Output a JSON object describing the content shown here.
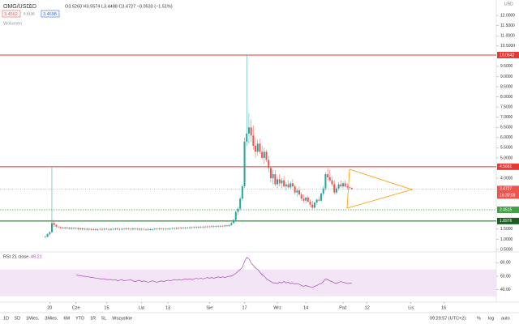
{
  "chart_data": {
    "type": "candlestick",
    "symbol": "OMG/USD",
    "interval": "1D",
    "legend_values": "O3.5260 H3.5574 L3.4488 C3.4727 −0.0533 (−1.51%)",
    "buttons": [
      "3.4562",
      "0.0136",
      "3.4698"
    ],
    "volume_label": "Wolumen",
    "currency": "USD",
    "up_color": "#26a69a",
    "down_color": "#ef5350",
    "xlim": [
      -20.7,
      206
    ],
    "xticks": [
      {
        "value": 2,
        "label": "20"
      },
      {
        "value": 14,
        "label": "Cze"
      },
      {
        "value": 28,
        "label": "15"
      },
      {
        "value": 44,
        "label": "Lip"
      },
      {
        "value": 56,
        "label": "13"
      },
      {
        "value": 75,
        "label": "Sie"
      },
      {
        "value": 91,
        "label": "17"
      },
      {
        "value": 106,
        "label": "Wrz"
      },
      {
        "value": 119,
        "label": "14"
      },
      {
        "value": 136,
        "label": "Paź"
      },
      {
        "value": 147,
        "label": "12"
      },
      {
        "value": 167,
        "label": "Lis"
      },
      {
        "value": 182,
        "label": "16"
      }
    ],
    "ylim": [
      0.42,
      12.76
    ],
    "yticks": [
      {
        "value": 12,
        "label": "12.0000"
      },
      {
        "value": 11.5,
        "label": "11.5000"
      },
      {
        "value": 11,
        "label": "11.0000"
      },
      {
        "value": 10.5,
        "label": "10.5000"
      },
      {
        "value": 9.5,
        "label": "9.5000"
      },
      {
        "value": 9,
        "label": "9.0000"
      },
      {
        "value": 8.5,
        "label": "8.5000"
      },
      {
        "value": 8,
        "label": "8.0000"
      },
      {
        "value": 7.5,
        "label": "7.5000"
      },
      {
        "value": 7,
        "label": "7.0000"
      },
      {
        "value": 6.5,
        "label": "6.5000"
      },
      {
        "value": 6,
        "label": "6.0000"
      },
      {
        "value": 5.5,
        "label": "5.5000"
      },
      {
        "value": 5,
        "label": "5.0000"
      },
      {
        "value": 4,
        "label": "4.0000"
      },
      {
        "value": 1.5,
        "label": "1.5000"
      },
      {
        "value": 1,
        "label": "1.0000"
      },
      {
        "value": 0.5,
        "label": "0.5000"
      }
    ],
    "levels": [
      {
        "value": 10.0542,
        "color": "#e53935",
        "style": "solid"
      },
      {
        "value": 4.5661,
        "color": "#e53935",
        "style": "solid"
      },
      {
        "value": 2.4515,
        "color": "#43a047",
        "style": "dotted"
      },
      {
        "value": 1.8976,
        "color": "#1b5e20",
        "style": "solid"
      }
    ],
    "last_price": {
      "value": 3.4727,
      "countdown": "16:30:03",
      "color": "#ef5350"
    },
    "series": [
      {
        "name": "OMG/USD",
        "ohlc": [
          [
            1.1,
            1.18,
            1.05,
            1.12
          ],
          [
            1.12,
            1.3,
            1.1,
            1.25
          ],
          [
            1.25,
            1.4,
            1.2,
            1.35
          ],
          [
            1.35,
            4.57,
            1.3,
            1.8
          ],
          [
            1.8,
            1.95,
            1.6,
            1.7
          ],
          [
            1.7,
            1.75,
            1.55,
            1.62
          ],
          [
            1.62,
            1.66,
            1.55,
            1.6
          ],
          [
            1.6,
            1.64,
            1.5,
            1.55
          ],
          [
            1.55,
            1.62,
            1.5,
            1.58
          ],
          [
            1.58,
            1.62,
            1.49,
            1.54
          ],
          [
            1.54,
            1.61,
            1.49,
            1.57
          ],
          [
            1.57,
            1.61,
            1.47,
            1.52
          ],
          [
            1.52,
            1.6,
            1.47,
            1.56
          ],
          [
            1.56,
            1.6,
            1.48,
            1.53
          ],
          [
            1.53,
            1.59,
            1.48,
            1.55
          ],
          [
            1.55,
            1.59,
            1.45,
            1.5
          ],
          [
            1.5,
            1.58,
            1.45,
            1.54
          ],
          [
            1.54,
            1.58,
            1.44,
            1.49
          ],
          [
            1.49,
            1.56,
            1.44,
            1.52
          ],
          [
            1.52,
            1.56,
            1.43,
            1.48
          ],
          [
            1.48,
            1.55,
            1.43,
            1.51
          ],
          [
            1.51,
            1.55,
            1.42,
            1.47
          ],
          [
            1.47,
            1.54,
            1.42,
            1.5
          ],
          [
            1.5,
            1.54,
            1.41,
            1.46
          ],
          [
            1.46,
            1.53,
            1.41,
            1.49
          ],
          [
            1.49,
            1.55,
            1.44,
            1.51
          ],
          [
            1.51,
            1.55,
            1.43,
            1.48
          ],
          [
            1.48,
            1.56,
            1.43,
            1.52
          ],
          [
            1.52,
            1.56,
            1.45,
            1.5
          ],
          [
            1.5,
            1.54,
            1.42,
            1.47
          ],
          [
            1.47,
            1.55,
            1.42,
            1.51
          ],
          [
            1.51,
            1.55,
            1.44,
            1.49
          ],
          [
            1.49,
            1.57,
            1.44,
            1.53
          ],
          [
            1.53,
            1.57,
            1.45,
            1.5
          ],
          [
            1.5,
            1.54,
            1.43,
            1.48
          ],
          [
            1.48,
            1.56,
            1.43,
            1.52
          ],
          [
            1.52,
            1.56,
            1.45,
            1.5
          ],
          [
            1.5,
            1.58,
            1.45,
            1.54
          ],
          [
            1.54,
            1.58,
            1.46,
            1.51
          ],
          [
            1.51,
            1.55,
            1.44,
            1.49
          ],
          [
            1.49,
            1.57,
            1.44,
            1.53
          ],
          [
            1.53,
            1.57,
            1.45,
            1.5
          ],
          [
            1.5,
            1.56,
            1.45,
            1.52
          ],
          [
            1.52,
            1.56,
            1.43,
            1.48
          ],
          [
            1.48,
            1.55,
            1.43,
            1.51
          ],
          [
            1.51,
            1.55,
            1.44,
            1.49
          ],
          [
            1.49,
            1.53,
            1.42,
            1.47
          ],
          [
            1.47,
            1.54,
            1.42,
            1.5
          ],
          [
            1.5,
            1.54,
            1.41,
            1.46
          ],
          [
            1.46,
            1.53,
            1.41,
            1.49
          ],
          [
            1.49,
            1.56,
            1.44,
            1.52
          ],
          [
            1.52,
            1.56,
            1.45,
            1.5
          ],
          [
            1.5,
            1.57,
            1.45,
            1.53
          ],
          [
            1.53,
            1.57,
            1.46,
            1.51
          ],
          [
            1.51,
            1.55,
            1.44,
            1.49
          ],
          [
            1.49,
            1.56,
            1.44,
            1.52
          ],
          [
            1.52,
            1.56,
            1.45,
            1.5
          ],
          [
            1.5,
            1.57,
            1.45,
            1.53
          ],
          [
            1.53,
            1.59,
            1.48,
            1.55
          ],
          [
            1.55,
            1.59,
            1.47,
            1.52
          ],
          [
            1.52,
            1.6,
            1.47,
            1.56
          ],
          [
            1.56,
            1.6,
            1.49,
            1.54
          ],
          [
            1.54,
            1.61,
            1.49,
            1.57
          ],
          [
            1.57,
            1.61,
            1.5,
            1.55
          ],
          [
            1.55,
            1.62,
            1.5,
            1.58
          ],
          [
            1.58,
            1.62,
            1.51,
            1.56
          ],
          [
            1.56,
            1.63,
            1.51,
            1.59
          ],
          [
            1.59,
            1.63,
            1.52,
            1.57
          ],
          [
            1.57,
            1.64,
            1.52,
            1.6
          ],
          [
            1.6,
            1.64,
            1.53,
            1.58
          ],
          [
            1.58,
            1.65,
            1.53,
            1.61
          ],
          [
            1.61,
            1.65,
            1.54,
            1.59
          ],
          [
            1.59,
            1.66,
            1.54,
            1.62
          ],
          [
            1.62,
            1.66,
            1.55,
            1.6
          ],
          [
            1.6,
            1.67,
            1.55,
            1.63
          ],
          [
            1.63,
            1.67,
            1.56,
            1.61
          ],
          [
            1.61,
            1.68,
            1.56,
            1.64
          ],
          [
            1.64,
            1.68,
            1.57,
            1.62
          ],
          [
            1.62,
            1.69,
            1.57,
            1.65
          ],
          [
            1.65,
            1.69,
            1.58,
            1.63
          ],
          [
            1.63,
            1.7,
            1.58,
            1.66
          ],
          [
            1.66,
            1.7,
            1.59,
            1.64
          ],
          [
            1.64,
            1.72,
            1.59,
            1.68
          ],
          [
            1.68,
            1.72,
            1.61,
            1.66
          ],
          [
            1.66,
            1.74,
            1.61,
            1.7
          ],
          [
            1.7,
            1.85,
            1.65,
            1.8
          ],
          [
            1.8,
            2.0,
            1.75,
            1.95
          ],
          [
            1.95,
            2.4,
            1.9,
            2.35
          ],
          [
            2.35,
            2.6,
            2.2,
            2.5
          ],
          [
            2.5,
            3.1,
            2.4,
            3.0
          ],
          [
            3.0,
            3.7,
            2.9,
            3.6
          ],
          [
            3.6,
            6.0,
            3.5,
            5.8
          ],
          [
            5.8,
            10.05,
            5.6,
            6.2
          ],
          [
            6.2,
            7.2,
            5.7,
            6.5
          ],
          [
            6.5,
            6.9,
            5.8,
            6.1
          ],
          [
            6.1,
            6.6,
            5.4,
            5.6
          ],
          [
            5.6,
            6.0,
            5.0,
            5.3
          ],
          [
            5.3,
            5.9,
            5.1,
            5.7
          ],
          [
            5.7,
            5.95,
            5.2,
            5.3
          ],
          [
            5.3,
            5.6,
            4.9,
            5.0
          ],
          [
            5.0,
            5.5,
            4.7,
            5.3
          ],
          [
            5.3,
            5.4,
            4.8,
            4.9
          ],
          [
            4.9,
            5.1,
            4.3,
            4.5
          ],
          [
            4.5,
            4.6,
            3.8,
            4.0
          ],
          [
            4.0,
            4.4,
            3.7,
            4.2
          ],
          [
            4.2,
            4.4,
            3.6,
            3.7
          ],
          [
            3.7,
            4.1,
            3.5,
            3.95
          ],
          [
            3.95,
            4.2,
            3.6,
            3.75
          ],
          [
            3.75,
            4.0,
            3.5,
            3.9
          ],
          [
            3.9,
            4.1,
            3.55,
            3.6
          ],
          [
            3.6,
            3.8,
            3.4,
            3.7
          ],
          [
            3.7,
            3.9,
            3.5,
            3.55
          ],
          [
            3.55,
            3.85,
            3.45,
            3.75
          ],
          [
            3.75,
            3.95,
            3.55,
            3.6
          ],
          [
            3.6,
            3.7,
            3.2,
            3.3
          ],
          [
            3.3,
            3.5,
            3.1,
            3.4
          ],
          [
            3.4,
            3.6,
            3.15,
            3.2
          ],
          [
            3.2,
            3.3,
            2.9,
            3.0
          ],
          [
            3.0,
            3.2,
            2.8,
            2.9
          ],
          [
            2.9,
            3.1,
            2.75,
            3.05
          ],
          [
            3.05,
            3.15,
            2.8,
            2.85
          ],
          [
            2.85,
            2.95,
            2.6,
            2.7
          ],
          [
            2.7,
            2.9,
            2.45,
            2.55
          ],
          [
            2.55,
            2.85,
            2.5,
            2.8
          ],
          [
            2.8,
            3.0,
            2.7,
            2.95
          ],
          [
            2.95,
            3.1,
            2.85,
            2.9
          ],
          [
            2.9,
            3.3,
            2.85,
            3.25
          ],
          [
            3.25,
            3.6,
            3.15,
            3.5
          ],
          [
            3.5,
            4.3,
            3.4,
            4.2
          ],
          [
            4.2,
            4.5,
            3.9,
            4.05
          ],
          [
            4.05,
            4.4,
            3.8,
            3.9
          ],
          [
            3.9,
            4.1,
            3.6,
            3.7
          ],
          [
            3.7,
            3.9,
            3.2,
            3.3
          ],
          [
            3.3,
            3.6,
            3.2,
            3.5
          ],
          [
            3.5,
            3.8,
            3.4,
            3.7
          ],
          [
            3.7,
            3.9,
            3.55,
            3.6
          ],
          [
            3.6,
            3.85,
            3.5,
            3.75
          ],
          [
            3.75,
            3.9,
            3.55,
            3.6
          ],
          [
            3.6,
            3.75,
            3.45,
            3.55
          ],
          [
            3.55,
            3.62,
            3.45,
            3.53
          ],
          [
            3.526,
            3.5574,
            3.4488,
            3.4727
          ]
        ]
      }
    ],
    "rsi": {
      "name": "RSI 21 close",
      "color": "#ab47bc",
      "band": [
        30,
        70
      ],
      "band_color": "#f3e5f5",
      "ylim": [
        22.5,
        95
      ],
      "yticks": [
        {
          "value": 80,
          "label": "80.00"
        },
        {
          "value": 60,
          "label": "60.00"
        },
        {
          "value": 40,
          "label": "40.00"
        }
      ],
      "values": [
        null,
        null,
        null,
        null,
        null,
        null,
        null,
        null,
        null,
        null,
        null,
        null,
        null,
        null,
        62,
        61,
        61,
        60,
        60,
        59,
        59,
        58,
        58,
        57,
        57,
        56,
        56,
        56,
        55,
        55,
        55,
        54,
        55,
        53,
        54,
        55,
        53,
        54,
        54,
        55,
        53,
        52,
        53,
        54,
        52,
        53,
        52,
        51,
        52,
        53,
        52,
        51,
        52,
        53,
        52,
        53,
        54,
        53,
        54,
        55,
        54,
        55,
        54,
        55,
        56,
        55,
        56,
        55,
        56,
        57,
        56,
        57,
        56,
        57,
        58,
        57,
        58,
        57,
        58,
        59,
        58,
        59,
        58,
        59,
        60,
        60,
        62,
        64,
        67,
        70,
        73,
        82,
        88,
        86,
        80,
        76,
        72,
        70,
        66,
        62,
        60,
        56,
        54,
        52,
        50,
        50,
        49,
        51,
        50,
        52,
        50,
        51,
        49,
        50,
        48,
        49,
        48,
        46,
        45,
        46,
        45,
        44,
        43,
        45,
        46,
        48,
        49,
        52,
        56,
        55,
        53,
        52,
        50,
        49,
        51,
        52,
        51,
        50,
        49,
        49.5,
        49.21
      ]
    },
    "toolbar": {
      "ranges": [
        "1D",
        "5D",
        "1Mies.",
        "3Mies.",
        "6M",
        "YTD",
        "1R",
        "5L",
        "Wszystkie"
      ],
      "clock": "09:29:57 (UTC+2)",
      "options": [
        "%",
        "log",
        "auto"
      ]
    }
  }
}
